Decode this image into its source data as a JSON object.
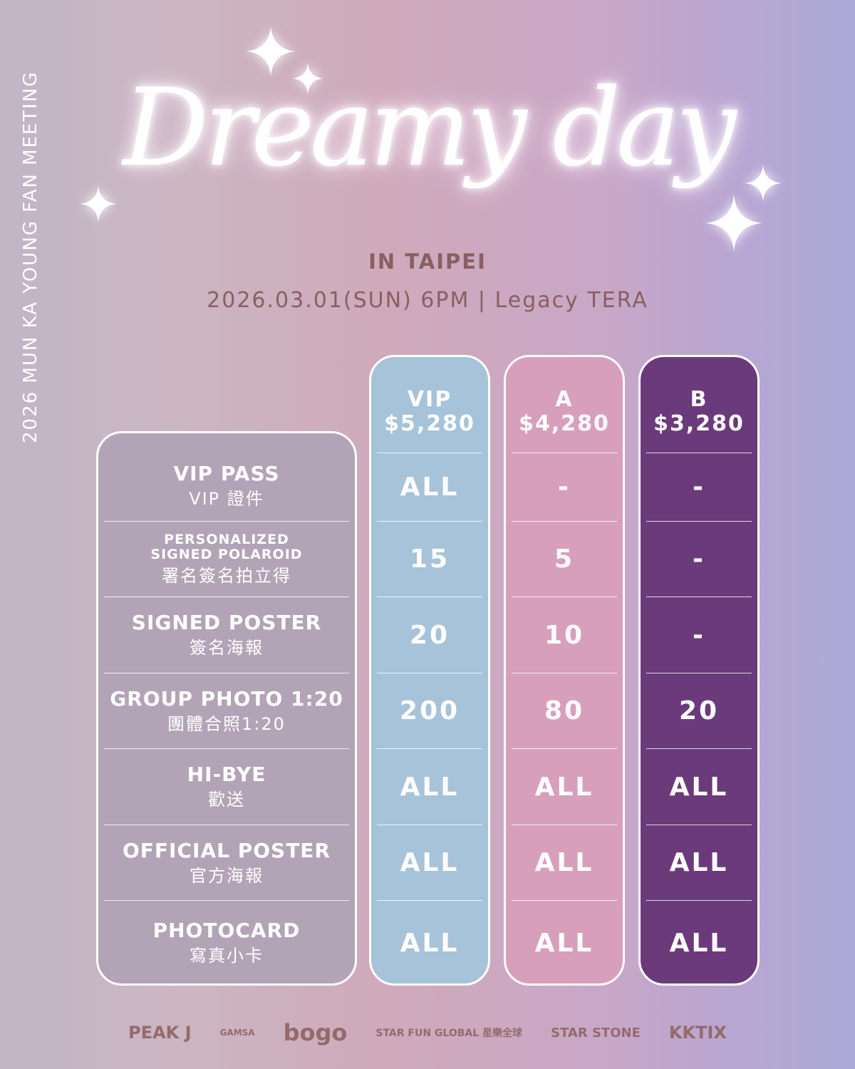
{
  "side_text": "2026 MUN KA YOUNG FAN MEETING",
  "title": "Dreamy day",
  "city": "IN TAIPEI",
  "date_venue": "2026.03.01(SUN) 6PM | Legacy TERA",
  "colors": {
    "vip": "#a7c3d9",
    "a": "#d89fbc",
    "b": "#6a3a7a",
    "labels": "#b3a3b6",
    "text_brown": "#8a5f62"
  },
  "tiers": [
    {
      "name": "VIP",
      "price": "$5,280",
      "values": [
        "ALL",
        "15",
        "20",
        "200",
        "ALL",
        "ALL",
        "ALL"
      ]
    },
    {
      "name": "A",
      "price": "$4,280",
      "values": [
        "-",
        "5",
        "10",
        "80",
        "ALL",
        "ALL",
        "ALL"
      ]
    },
    {
      "name": "B",
      "price": "$3,280",
      "values": [
        "-",
        "-",
        "-",
        "20",
        "ALL",
        "ALL",
        "ALL"
      ]
    }
  ],
  "benefits": [
    {
      "en": "VIP PASS",
      "zh": "VIP 證件"
    },
    {
      "en": "PERSONALIZED\nSIGNED POLAROID",
      "zh": "署名簽名拍立得"
    },
    {
      "en": "SIGNED POSTER",
      "zh": "簽名海報"
    },
    {
      "en": "GROUP PHOTO 1:20",
      "zh": "團體合照1:20"
    },
    {
      "en": "HI-BYE",
      "zh": "歡送"
    },
    {
      "en": "OFFICIAL POSTER",
      "zh": "官方海報"
    },
    {
      "en": "PHOTOCARD",
      "zh": "寫真小卡"
    }
  ],
  "logos": [
    "PEAK J",
    "GAMSA",
    "bogo",
    "STAR FUN GLOBAL 星樂全球",
    "STAR STONE",
    "KKTIX"
  ]
}
